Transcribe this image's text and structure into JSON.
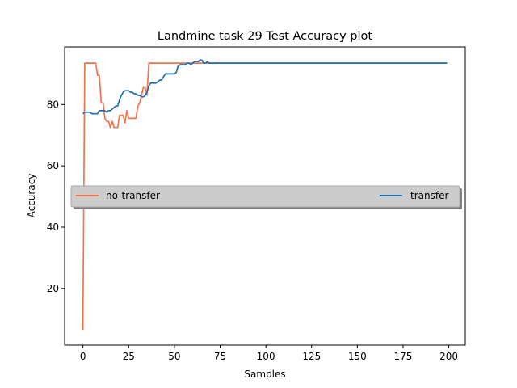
{
  "chart_data": {
    "type": "line",
    "title": "Landmine task 29 Test Accuracy plot",
    "xlabel": "Samples",
    "ylabel": "Accuracy",
    "xlim": [
      -10,
      209
    ],
    "ylim": [
      1.5,
      98.8
    ],
    "xticks": [
      0,
      25,
      50,
      75,
      100,
      125,
      150,
      175,
      200
    ],
    "yticks": [
      20,
      40,
      60,
      80
    ],
    "grid": false,
    "legend_position": "center, spanning width",
    "series": [
      {
        "name": "no-transfer",
        "color": "#f4734b",
        "x": [
          0,
          1,
          2,
          3,
          4,
          5,
          6,
          7,
          8,
          9,
          10,
          11,
          12,
          13,
          14,
          15,
          16,
          17,
          18,
          19,
          20,
          21,
          22,
          23,
          24,
          25,
          26,
          27,
          28,
          29,
          30,
          31,
          32,
          33,
          34,
          35,
          36,
          37,
          38,
          39,
          40,
          45,
          50,
          55,
          60,
          62,
          65,
          68,
          70,
          199
        ],
        "y": [
          6.5,
          93.5,
          93.5,
          93.5,
          93.5,
          93.5,
          93.5,
          93.5,
          89.5,
          89.5,
          80.5,
          80.5,
          75.5,
          74.5,
          74.5,
          72.5,
          74.5,
          72.5,
          72.5,
          72.5,
          76.5,
          76.5,
          76.5,
          74.0,
          78.0,
          75.5,
          75.5,
          75.5,
          75.5,
          75.5,
          79.5,
          80.5,
          83.0,
          85.5,
          85.5,
          83.0,
          93.5,
          93.5,
          93.5,
          93.5,
          93.5,
          93.5,
          93.5,
          93.5,
          93.5,
          93.5,
          93.5,
          93.5,
          93.5,
          93.5
        ]
      },
      {
        "name": "transfer",
        "color": "#1f6fae",
        "x": [
          0,
          1,
          2,
          3,
          4,
          5,
          6,
          7,
          8,
          9,
          10,
          11,
          12,
          13,
          14,
          15,
          16,
          17,
          18,
          19,
          20,
          21,
          22,
          23,
          24,
          25,
          26,
          27,
          28,
          29,
          30,
          31,
          32,
          33,
          34,
          35,
          36,
          37,
          38,
          39,
          40,
          41,
          42,
          43,
          44,
          45,
          46,
          47,
          48,
          49,
          50,
          51,
          52,
          53,
          54,
          55,
          56,
          57,
          58,
          59,
          60,
          61,
          62,
          63,
          64,
          65,
          66,
          67,
          68,
          69,
          70,
          80,
          199
        ],
        "y": [
          77.0,
          77.5,
          77.5,
          77.5,
          77.5,
          77.0,
          77.0,
          77.0,
          77.0,
          78.0,
          78.0,
          78.0,
          78.0,
          77.5,
          78.0,
          78.0,
          78.5,
          79.0,
          79.5,
          79.5,
          81.5,
          83.0,
          84.0,
          84.5,
          84.5,
          84.5,
          84.0,
          84.0,
          83.5,
          83.5,
          83.0,
          83.0,
          82.5,
          82.5,
          83.0,
          84.0,
          86.0,
          87.0,
          87.0,
          87.0,
          87.0,
          87.5,
          88.0,
          88.0,
          89.0,
          90.0,
          90.0,
          90.0,
          90.0,
          90.0,
          90.0,
          90.5,
          92.5,
          93.0,
          93.0,
          93.0,
          93.0,
          93.5,
          93.5,
          93.0,
          93.5,
          94.0,
          94.0,
          94.0,
          94.5,
          94.5,
          93.5,
          93.5,
          94.0,
          93.5,
          93.5,
          93.5,
          93.5
        ]
      }
    ]
  }
}
